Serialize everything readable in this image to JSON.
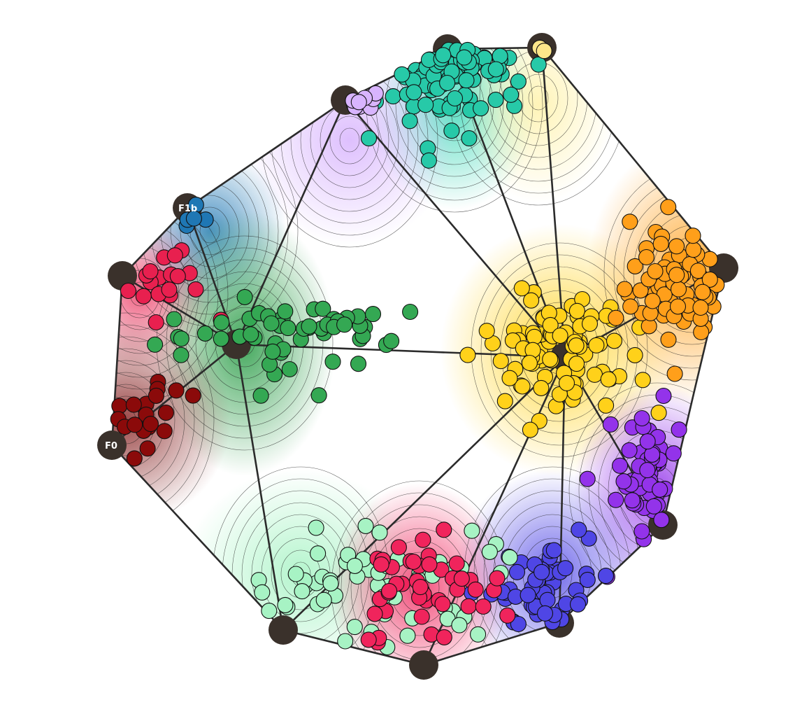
{
  "chart_data": {
    "type": "scatter",
    "title": "",
    "xlabel": "",
    "ylabel": "",
    "grid": false,
    "legend": "none",
    "anchor_labels": [
      "F1b",
      "F0"
    ],
    "clusters": [
      {
        "color": "#27c9a8",
        "center": [
          640,
          70
        ],
        "spread": [
          70,
          90
        ],
        "count": 90,
        "seed": 11
      },
      {
        "color": "#fde68a",
        "center": [
          775,
          68
        ],
        "spread": [
          20,
          10
        ],
        "count": 2,
        "seed": 12
      },
      {
        "color": "#d8b4fe",
        "center": [
          500,
          145
        ],
        "spread": [
          30,
          15
        ],
        "count": 9,
        "seed": 13
      },
      {
        "color": "#1f77b4",
        "center": [
          275,
          310
        ],
        "spread": [
          25,
          30
        ],
        "count": 6,
        "seed": 14
      },
      {
        "color": "#e8204f",
        "center": [
          220,
          390
        ],
        "spread": [
          55,
          60
        ],
        "count": 18,
        "seed": 15
      },
      {
        "color": "#34a853",
        "center": [
          420,
          470
        ],
        "spread": [
          130,
          60
        ],
        "count": 55,
        "seed": 16
      },
      {
        "color": "#8b0a0a",
        "center": [
          200,
          600
        ],
        "spread": [
          50,
          60
        ],
        "count": 20,
        "seed": 17
      },
      {
        "color": "#ffd11a",
        "center": [
          800,
          500
        ],
        "spread": [
          85,
          80
        ],
        "count": 85,
        "seed": 18
      },
      {
        "color": "#ff9f1a",
        "center": [
          960,
          410
        ],
        "spread": [
          70,
          75
        ],
        "count": 70,
        "seed": 19
      },
      {
        "color": "#9333ea",
        "center": [
          930,
          700
        ],
        "spread": [
          45,
          90
        ],
        "count": 55,
        "seed": 20
      },
      {
        "color": "#4f46e5",
        "center": [
          780,
          850
        ],
        "spread": [
          70,
          55
        ],
        "count": 55,
        "seed": 21
      },
      {
        "color": "#a7f3c4",
        "center": [
          520,
          830
        ],
        "spread": [
          170,
          70
        ],
        "count": 60,
        "seed": 22
      },
      {
        "color": "#f0245c",
        "center": [
          620,
          850
        ],
        "spread": [
          90,
          80
        ],
        "count": 45,
        "seed": 23
      }
    ]
  }
}
